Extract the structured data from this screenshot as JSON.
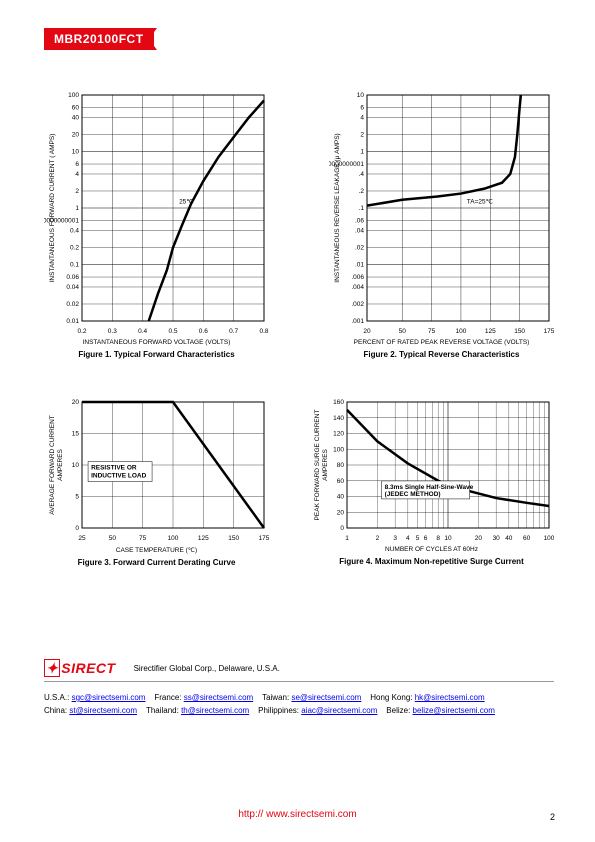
{
  "part_number": "MBR20100FCT",
  "fig1": {
    "title": "Figure 1. Typical Forward Characteristics",
    "xlabel": "INSTANTANEOUS FORWARD VOLTAGE (VOLTS)",
    "ylabel": "INSTANTANEOUS FORWARD CURRENT ( AMPS)",
    "xlim": [
      0.2,
      0.8
    ],
    "xticks": [
      0.2,
      0.3,
      0.4,
      0.5,
      0.6,
      0.7,
      0.8
    ],
    "ylim_log": [
      0.01,
      100
    ],
    "yticks": [
      0.01,
      0.02,
      0.04,
      0.06,
      0.1,
      0.2,
      0.4,
      0.6,
      1,
      2,
      4,
      6,
      10,
      20,
      40,
      60,
      100
    ],
    "curve_label": "25℃",
    "line_color": "#000000",
    "line_width": 2.5,
    "data": [
      [
        0.42,
        0.01
      ],
      [
        0.45,
        0.03
      ],
      [
        0.48,
        0.08
      ],
      [
        0.5,
        0.2
      ],
      [
        0.53,
        0.5
      ],
      [
        0.56,
        1.2
      ],
      [
        0.6,
        3
      ],
      [
        0.65,
        8
      ],
      [
        0.7,
        18
      ],
      [
        0.75,
        40
      ],
      [
        0.8,
        80
      ]
    ]
  },
  "fig2": {
    "title": "Figure 2. Typical Reverse Characteristics",
    "xlabel": "PERCENT OF RATED PEAK REVERSE VOLTAGE (VOLTS)",
    "ylabel": "INSTANTANEOUS REVERSE LEAKAGE (μ AMPS)",
    "xlim": [
      20,
      175
    ],
    "xticks": [
      20,
      50,
      75,
      100,
      125,
      150,
      175
    ],
    "ylim_log": [
      0.001,
      10
    ],
    "yticks": [
      0.001,
      0.002,
      0.004,
      0.006,
      0.01,
      0.02,
      0.04,
      0.06,
      0.1,
      0.2,
      0.4,
      0.6,
      1,
      2,
      4,
      6,
      10
    ],
    "curve_label": "TA=25℃",
    "line_color": "#000000",
    "line_width": 2.5,
    "data": [
      [
        20,
        0.11
      ],
      [
        50,
        0.14
      ],
      [
        80,
        0.16
      ],
      [
        100,
        0.18
      ],
      [
        120,
        0.22
      ],
      [
        135,
        0.28
      ],
      [
        142,
        0.4
      ],
      [
        146,
        0.8
      ],
      [
        148,
        2
      ],
      [
        150,
        6
      ],
      [
        151,
        10
      ]
    ]
  },
  "fig3": {
    "title": "Figure 3. Forward Current Derating Curve",
    "xlabel": "CASE TEMPERATURE (℃)",
    "ylabel": "AVERAGE FORWARD CURRENT\nAMPERES",
    "xlim": [
      25,
      175
    ],
    "xticks": [
      25,
      50,
      75,
      100,
      125,
      150,
      175
    ],
    "ylim": [
      0,
      20
    ],
    "yticks": [
      0,
      5,
      10,
      15,
      20
    ],
    "box_label": "RESISTIVE OR\nINDUCTIVE LOAD",
    "line_color": "#000000",
    "line_width": 2.5,
    "data": [
      [
        25,
        20
      ],
      [
        100,
        20
      ],
      [
        175,
        0
      ]
    ]
  },
  "fig4": {
    "title": "Figure 4. Maximum Non-repetitive Surge Current",
    "xlabel": "NUMBER OF CYCLES AT 60Hz",
    "ylabel": "PEAK FORWARD SURGE CURRENT\nAMPERES",
    "xlim_log": [
      1,
      100
    ],
    "xticks": [
      1,
      2,
      3,
      4,
      5,
      6,
      8,
      10,
      20,
      30,
      40,
      60,
      100
    ],
    "ylim": [
      0,
      160
    ],
    "yticks": [
      0,
      20,
      40,
      60,
      80,
      100,
      120,
      140,
      160
    ],
    "box_label": "8.3ms Single Half-Sine-Wave\n(JEDEC METHOD)",
    "line_color": "#000000",
    "line_width": 2.5,
    "data": [
      [
        1,
        150
      ],
      [
        2,
        110
      ],
      [
        4,
        82
      ],
      [
        8,
        60
      ],
      [
        15,
        48
      ],
      [
        30,
        38
      ],
      [
        60,
        32
      ],
      [
        100,
        28
      ]
    ]
  },
  "footer": {
    "company": "Sirectifier Global Corp., Delaware, U.S.A.",
    "logo": "SIRECT",
    "contacts_line1": [
      {
        "loc": "U.S.A.:",
        "email": "sgc@sirectsemi.com"
      },
      {
        "loc": "France:",
        "email": "ss@sirectsemi.com"
      },
      {
        "loc": "Taiwan:",
        "email": "se@sirectsemi.com"
      },
      {
        "loc": "Hong Kong:",
        "email": "hk@sirectsemi.com"
      }
    ],
    "contacts_line2": [
      {
        "loc": "China:",
        "email": "st@sirectsemi.com"
      },
      {
        "loc": "Thailand:",
        "email": "th@sirectsemi.com"
      },
      {
        "loc": "Philippines:",
        "email": "aiac@sirectsemi.com"
      },
      {
        "loc": "Belize:",
        "email": "belize@sirectsemi.com"
      }
    ],
    "url": "http:// www.sirectsemi.com",
    "page": "2"
  }
}
